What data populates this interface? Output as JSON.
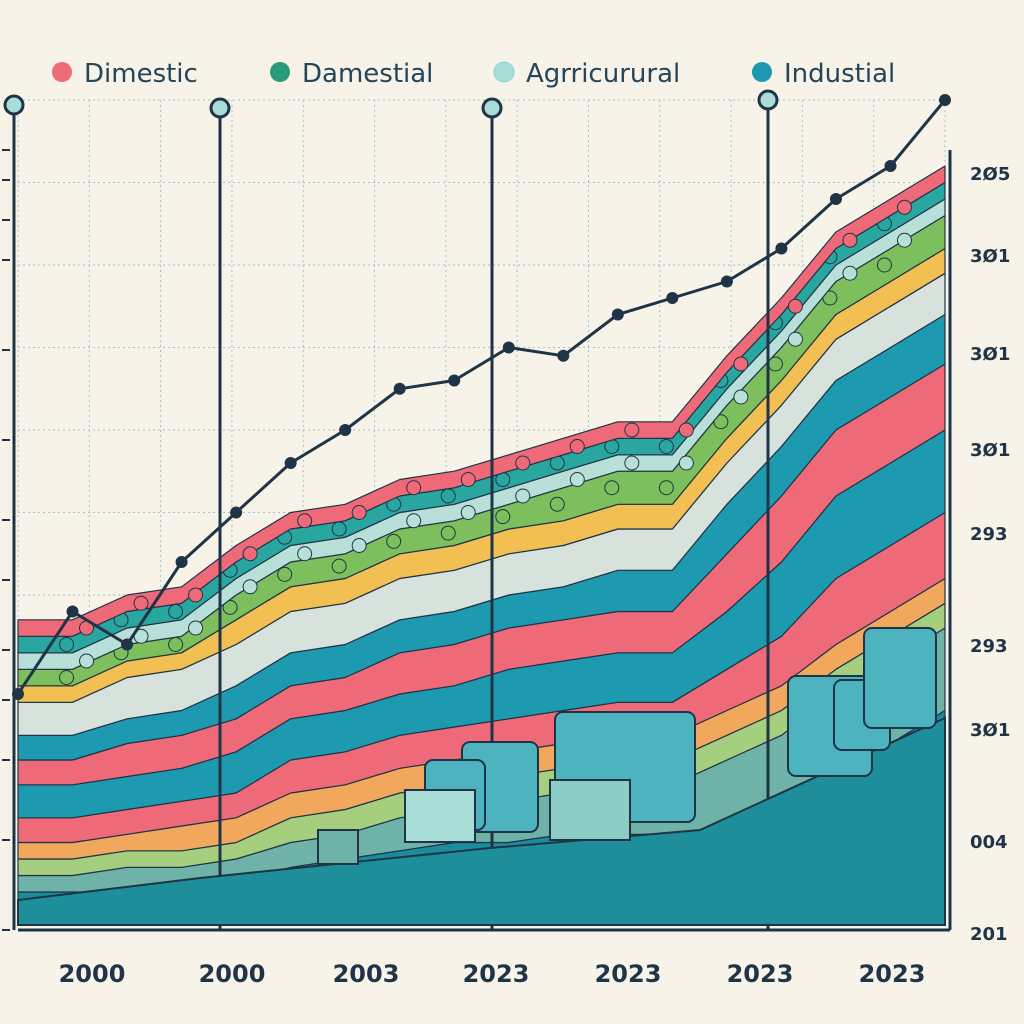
{
  "chart_data": {
    "type": "area",
    "title": "",
    "xlabel": "",
    "ylabel": "",
    "stacked": true,
    "grid": true,
    "legend_position": "top",
    "legend": [
      {
        "label": "Dimestic",
        "color": "#ef6a78"
      },
      {
        "label": "Damestial",
        "color": "#2a9a7e"
      },
      {
        "label": "Agrricurural",
        "color": "#a9ddd8"
      },
      {
        "label": "Industial",
        "color": "#1e9ab0"
      }
    ],
    "x_tick_labels": [
      "2000",
      "2000",
      "2003",
      "2023",
      "2023",
      "2023",
      "2023"
    ],
    "y_tick_labels_right": [
      "2Ø5",
      "3Ø1",
      "3Ø1",
      "3Ø1",
      "293",
      "293",
      "3Ø1",
      "004",
      "201"
    ],
    "x_points": [
      0,
      1,
      2,
      3,
      4,
      5,
      6,
      7,
      8,
      9,
      10,
      11,
      12,
      13,
      14,
      15,
      16,
      17
    ],
    "ylim": [
      0,
      100
    ],
    "series": [
      {
        "color": "#1a8c9c",
        "values": [
          4,
          4,
          4,
          4,
          5,
          7,
          8,
          9,
          10,
          10,
          11,
          11,
          11,
          12,
          14,
          18,
          22,
          26
        ]
      },
      {
        "color": "#6fb2a8",
        "values": [
          2,
          2,
          3,
          3,
          3,
          3,
          3,
          4,
          4,
          5,
          5,
          6,
          6,
          8,
          9,
          10,
          10,
          10
        ]
      },
      {
        "color": "#a5cf7e",
        "values": [
          2,
          2,
          2,
          2,
          2,
          3,
          3,
          3,
          3,
          3,
          3,
          3,
          3,
          3,
          3,
          3,
          3,
          3
        ]
      },
      {
        "color": "#f2a85c",
        "values": [
          2,
          2,
          2,
          3,
          3,
          3,
          3,
          3,
          3,
          3,
          3,
          3,
          3,
          3,
          3,
          3,
          3,
          3
        ]
      },
      {
        "color": "#ef6a78",
        "values": [
          3,
          3,
          3,
          3,
          3,
          4,
          4,
          4,
          4,
          4,
          4,
          4,
          4,
          5,
          6,
          8,
          8,
          8
        ]
      },
      {
        "color": "#1e9ab0",
        "values": [
          4,
          4,
          4,
          4,
          5,
          5,
          5,
          5,
          5,
          6,
          6,
          6,
          6,
          7,
          9,
          10,
          10,
          10
        ]
      },
      {
        "color": "#ef6a78",
        "values": [
          3,
          3,
          4,
          4,
          4,
          4,
          4,
          5,
          5,
          5,
          5,
          5,
          5,
          7,
          8,
          8,
          8,
          8
        ]
      },
      {
        "color": "#1e9ab0",
        "values": [
          3,
          3,
          3,
          3,
          4,
          4,
          4,
          4,
          4,
          4,
          4,
          5,
          5,
          6,
          6,
          6,
          6,
          6
        ]
      },
      {
        "color": "#d7e2dd",
        "values": [
          4,
          4,
          5,
          5,
          5,
          5,
          5,
          5,
          5,
          5,
          5,
          5,
          5,
          5,
          5,
          5,
          5,
          5
        ]
      },
      {
        "color": "#f2bf52",
        "values": [
          2,
          2,
          2,
          2,
          3,
          3,
          3,
          3,
          3,
          3,
          3,
          3,
          3,
          3,
          3,
          3,
          3,
          3
        ]
      },
      {
        "color": "#7cbf5c",
        "values": [
          2,
          2,
          2,
          2,
          3,
          3,
          3,
          3,
          3,
          3,
          4,
          4,
          4,
          4,
          4,
          4,
          4,
          4
        ]
      },
      {
        "color": "#b9e0d8",
        "values": [
          2,
          2,
          2,
          2,
          2,
          2,
          2,
          2,
          2,
          2,
          2,
          2,
          2,
          2,
          2,
          2,
          2,
          2
        ]
      },
      {
        "color": "#2aa6a0",
        "values": [
          2,
          2,
          2,
          2,
          2,
          2,
          2,
          2,
          2,
          2,
          2,
          2,
          2,
          2,
          2,
          2,
          2,
          2
        ]
      },
      {
        "color": "#ef6a78",
        "values": [
          2,
          2,
          2,
          2,
          2,
          2,
          2,
          2,
          2,
          2,
          2,
          2,
          2,
          2,
          2,
          2,
          2,
          2
        ]
      }
    ],
    "top_line": [
      28,
      38,
      34,
      44,
      50,
      56,
      60,
      65,
      66,
      70,
      69,
      74,
      76,
      78,
      82,
      88,
      92,
      100
    ]
  }
}
